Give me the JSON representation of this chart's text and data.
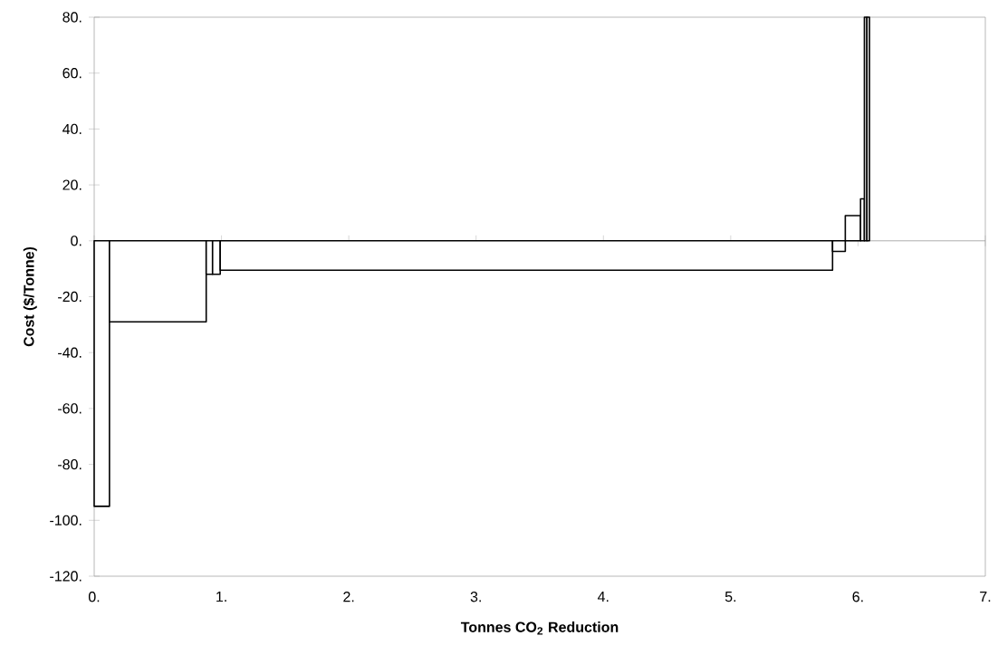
{
  "chart_data": {
    "type": "histogram",
    "xlabel": "Tonnes CO$_{2}$ Reduction",
    "ylabel": "Cost ($/Tonne)",
    "color": "#000000",
    "bins": [
      0,
      0.12,
      0.88,
      0.93,
      0.99,
      5.8,
      5.9,
      6.02,
      6.05,
      6.07,
      6.09
    ],
    "values": [
      -95,
      -29,
      -12,
      -12,
      -10.5,
      -3.8,
      9,
      15,
      80,
      80
    ],
    "xlim": [
      0,
      7
    ],
    "ylim": [
      -120,
      80
    ],
    "xticks": [
      {
        "value": 0,
        "label": "0."
      },
      {
        "value": 1,
        "label": "1."
      },
      {
        "value": 2,
        "label": "2."
      },
      {
        "value": 3,
        "label": "3."
      },
      {
        "value": 4,
        "label": "4."
      },
      {
        "value": 5,
        "label": "5."
      },
      {
        "value": 6,
        "label": "6."
      },
      {
        "value": 7,
        "label": "7."
      }
    ],
    "yticks": [
      {
        "value": -120,
        "label": "-120."
      },
      {
        "value": -100,
        "label": "-100."
      },
      {
        "value": -80,
        "label": "-80."
      },
      {
        "value": -60,
        "label": "-60."
      },
      {
        "value": -40,
        "label": "-40."
      },
      {
        "value": -20,
        "label": "-20."
      },
      {
        "value": 0,
        "label": "0."
      },
      {
        "value": 20,
        "label": "20."
      },
      {
        "value": 40,
        "label": "40."
      },
      {
        "value": 60,
        "label": "60."
      },
      {
        "value": 80,
        "label": "80."
      }
    ],
    "ref_lines": [
      {
        "axis": "y",
        "value": 0,
        "color": "#999999"
      }
    ],
    "grid": false
  }
}
